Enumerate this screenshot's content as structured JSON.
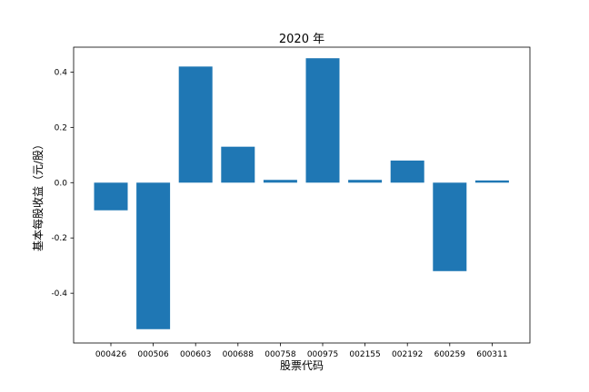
{
  "chart_data": {
    "type": "bar",
    "title": "2020 年",
    "xlabel": "股票代码",
    "ylabel": "基本每股收益（元/股）",
    "categories": [
      "000426",
      "000506",
      "000603",
      "000688",
      "000758",
      "000975",
      "002155",
      "002192",
      "600259",
      "600311"
    ],
    "values": [
      -0.1,
      -0.53,
      0.42,
      0.13,
      0.01,
      0.45,
      0.01,
      0.08,
      -0.32,
      0.008
    ],
    "ylim": [
      -0.58,
      0.49
    ],
    "yticks": [
      -0.4,
      -0.2,
      0.0,
      0.2,
      0.4
    ],
    "ytick_labels": [
      "-0.4",
      "-0.2",
      "0.0",
      "0.2",
      "0.4"
    ],
    "bar_color": "#1f77b4",
    "grid": false,
    "legend": "none"
  }
}
